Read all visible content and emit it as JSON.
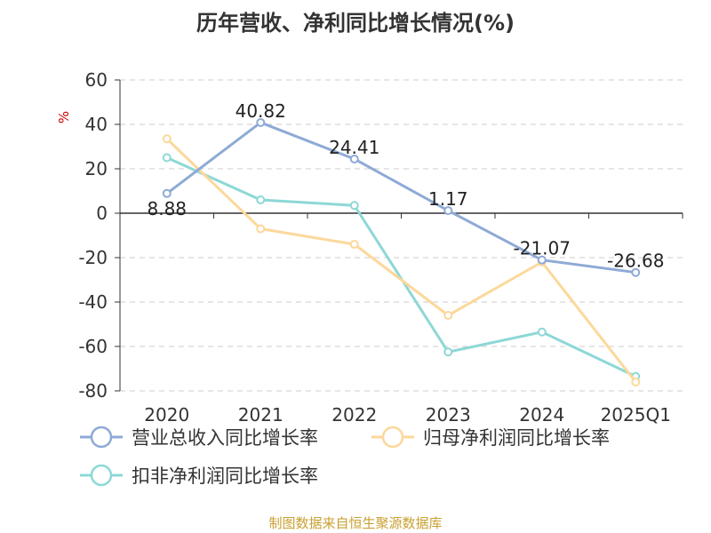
{
  "chart_data": {
    "type": "line",
    "title": "历年营收、净利同比增长情况(%)",
    "ylabel": "%",
    "categories": [
      "2020",
      "2021",
      "2022",
      "2023",
      "2024",
      "2025Q1"
    ],
    "ylim": [
      -80,
      60
    ],
    "yticks": [
      60,
      40,
      20,
      0,
      -20,
      -40,
      -60,
      -80
    ],
    "grid": true,
    "legend_position": "bottom",
    "series": [
      {
        "name": "营业总收入同比增长率",
        "color": "#8eaad6",
        "values": [
          8.88,
          40.82,
          24.41,
          1.17,
          -21.07,
          -26.68
        ],
        "data_labels": [
          "8.88",
          "40.82",
          "24.41",
          "1.17",
          "-21.07",
          "-26.68"
        ]
      },
      {
        "name": "归母净利润同比增长率",
        "color": "#fcd89b",
        "values": [
          33.5,
          -7.0,
          -14.0,
          -46.0,
          -22.0,
          -76.0
        ]
      },
      {
        "name": "扣非净利润同比增长率",
        "color": "#8dd8d6",
        "values": [
          25.0,
          6.0,
          3.5,
          -62.5,
          -53.5,
          -73.5
        ]
      }
    ]
  },
  "source_note": "制图数据来自恒生聚源数据库"
}
